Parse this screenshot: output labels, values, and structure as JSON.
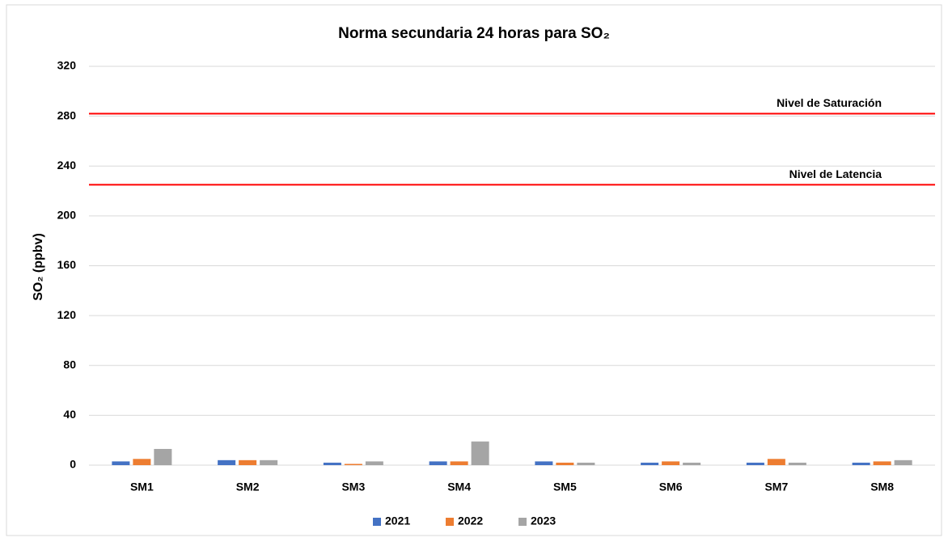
{
  "chart_data": {
    "type": "bar",
    "title": "Norma secundaria 24 horas para SO₂",
    "y_label": "SO₂ (ppbv)",
    "categories": [
      "SM1",
      "SM2",
      "SM3",
      "SM4",
      "SM5",
      "SM6",
      "SM7",
      "SM8"
    ],
    "series": [
      {
        "name": "2021",
        "color": "#4472c4",
        "values": [
          3,
          4,
          2,
          3,
          3,
          2,
          2,
          2
        ]
      },
      {
        "name": "2022",
        "color": "#ed7d31",
        "values": [
          5,
          4,
          1,
          3,
          2,
          3,
          5,
          3
        ]
      },
      {
        "name": "2023",
        "color": "#a5a5a5",
        "values": [
          13,
          4,
          3,
          19,
          2,
          2,
          2,
          4
        ]
      }
    ],
    "reference_lines": [
      {
        "label": "Nivel de Saturación",
        "value": 282,
        "color": "#ff0000"
      },
      {
        "label": "Nivel de Latencia",
        "value": 225,
        "color": "#ff0000"
      }
    ],
    "ylim": [
      0,
      320
    ],
    "yticks": [
      0,
      40,
      80,
      120,
      160,
      200,
      240,
      280,
      320
    ],
    "grid": true,
    "legend": "bottom"
  }
}
